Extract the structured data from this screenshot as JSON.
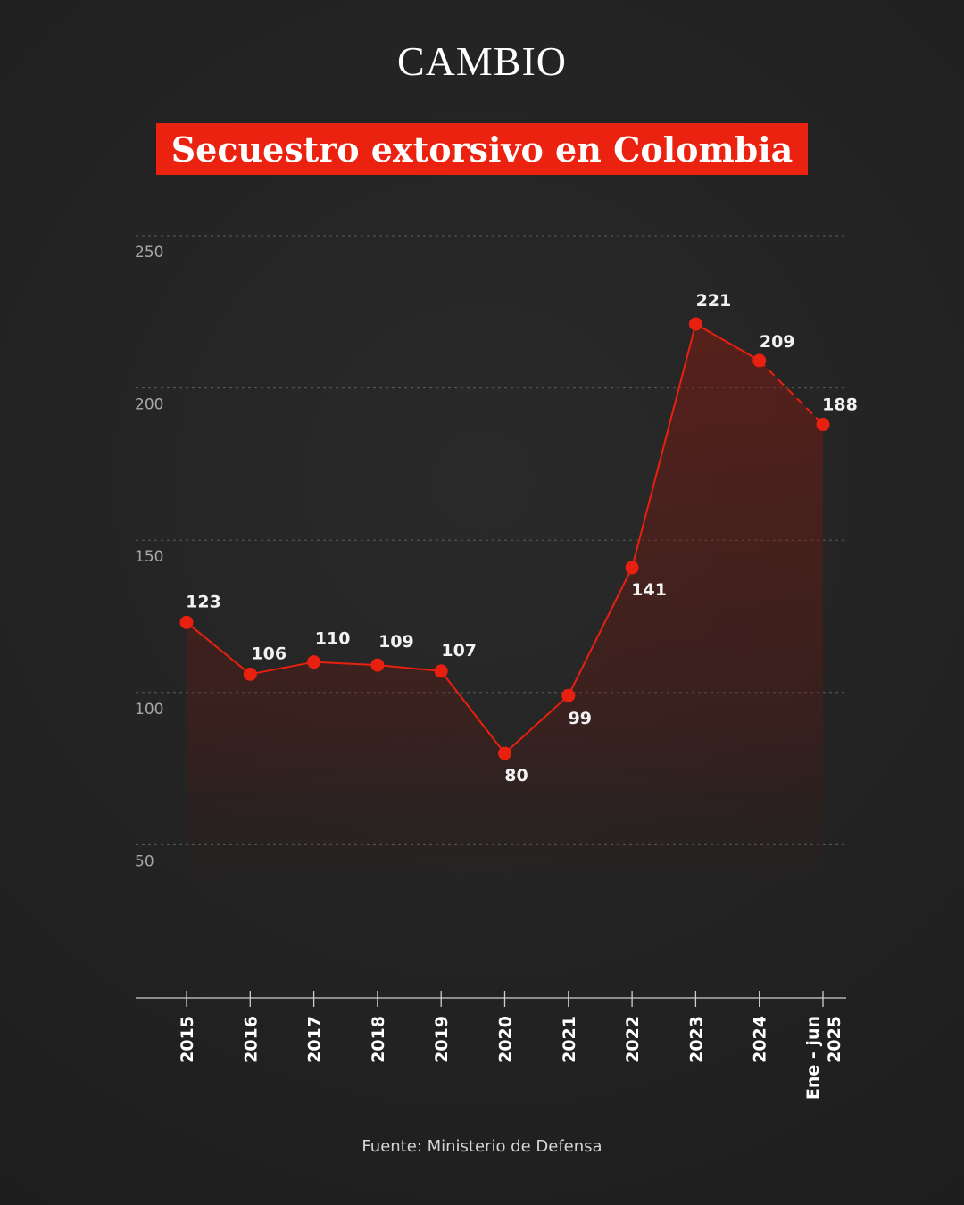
{
  "brand": "CAMBIO",
  "title": "Secuestro extorsivo en Colombia",
  "source": "Fuente: Ministerio de Defensa",
  "colors": {
    "background": "#232323",
    "accent": "#ec2210",
    "line": "#e8200f",
    "grid": "#6a6a6a",
    "text": "#ffffff",
    "muted": "#a8a8a8"
  },
  "chart_data": {
    "type": "area",
    "categories": [
      "2015",
      "2016",
      "2017",
      "2018",
      "2019",
      "2020",
      "2021",
      "2022",
      "2023",
      "2024",
      "Ene - jun 2025"
    ],
    "category_lines": [
      [
        "2015"
      ],
      [
        "2016"
      ],
      [
        "2017"
      ],
      [
        "2018"
      ],
      [
        "2019"
      ],
      [
        "2020"
      ],
      [
        "2021"
      ],
      [
        "2022"
      ],
      [
        "2023"
      ],
      [
        "2024"
      ],
      [
        "Ene - jun",
        "2025"
      ]
    ],
    "values": [
      123,
      106,
      110,
      109,
      107,
      80,
      99,
      141,
      221,
      209,
      188
    ],
    "partial_last_segment": true,
    "yticks": [
      50,
      100,
      150,
      200,
      250
    ],
    "ylim": [
      0,
      250
    ],
    "grid": true,
    "title": "Secuestro extorsivo en Colombia",
    "xlabel": "",
    "ylabel": ""
  }
}
